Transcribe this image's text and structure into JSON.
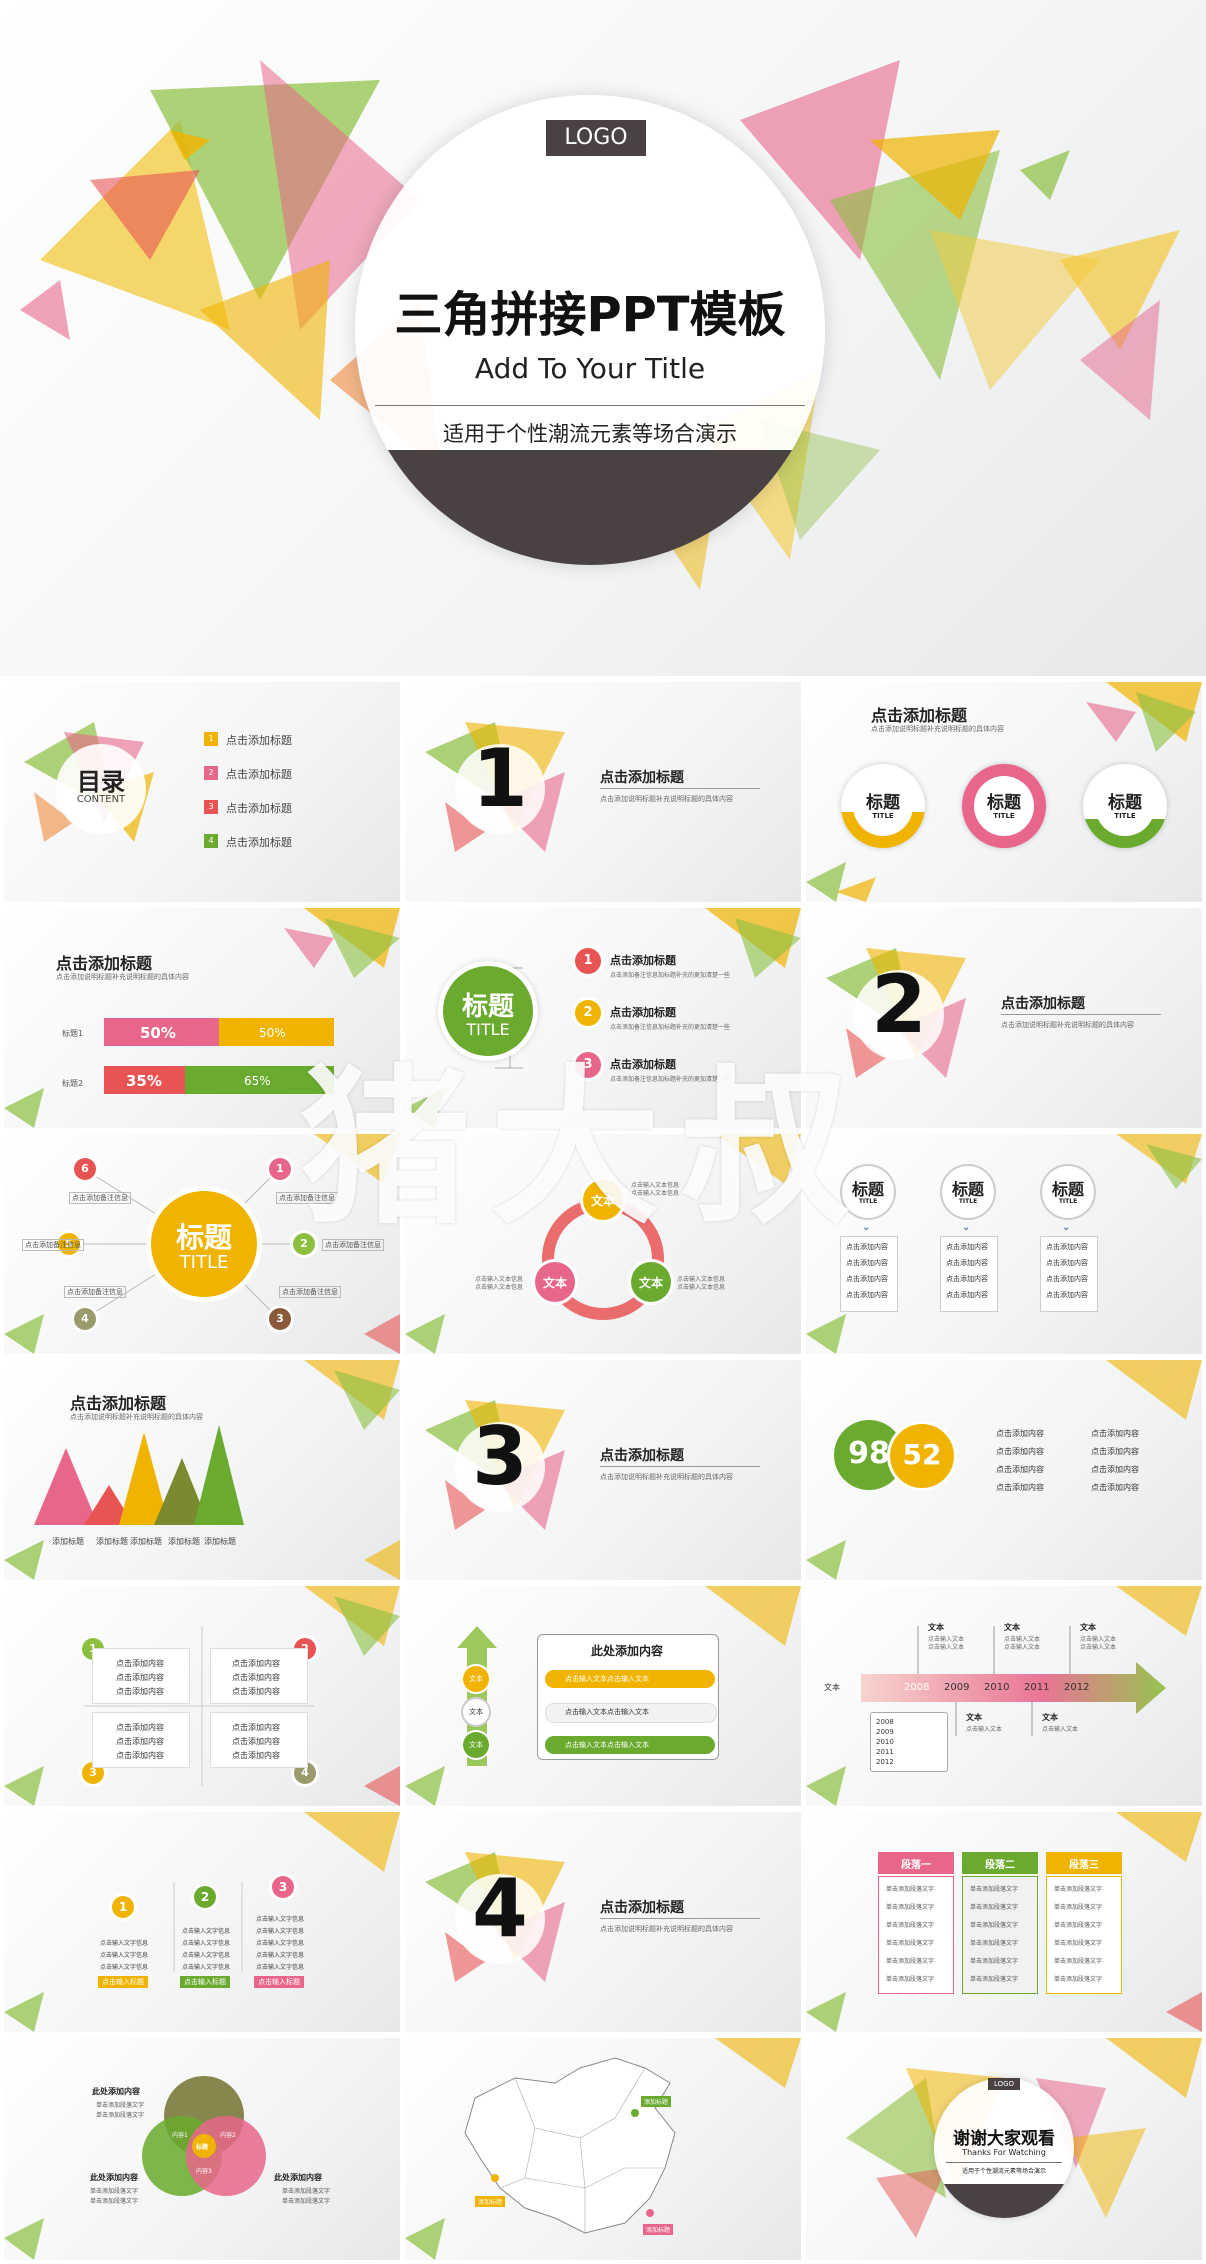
{
  "watermark": "猪大叔",
  "cover": {
    "logo": "LOGO",
    "title": "三角拼接PPT模板",
    "subtitle": "Add To Your Title",
    "tagline": "适用于个性潮流元素等场合演示"
  },
  "toc": {
    "title": "目录",
    "subtitle": "CONTENT",
    "items": [
      {
        "num": "1",
        "label": "点击添加标题",
        "color": "#f0b400"
      },
      {
        "num": "2",
        "label": "点击添加标题",
        "color": "#e8668a"
      },
      {
        "num": "3",
        "label": "点击添加标题",
        "color": "#e85454"
      },
      {
        "num": "4",
        "label": "点击添加标题",
        "color": "#6aaa2e"
      }
    ]
  },
  "section_title": "点击添加标题",
  "section_desc": "点击添加说明标题补充说明标题的具体内容",
  "sections": [
    "1",
    "2",
    "3",
    "4"
  ],
  "header_title": "点击添加标题",
  "header_desc": "点击添加说明标题补充说明标题的具体内容",
  "badges": {
    "label": "标题",
    "sub": "TITLE"
  },
  "bars": {
    "rows": [
      {
        "label": "标题1",
        "left": "50%",
        "right": "50%",
        "left_color": "#e8668a",
        "right_color": "#f0b400",
        "left_frac": 0.5
      },
      {
        "label": "标题2",
        "left": "35%",
        "right": "65%",
        "left_color": "#e85454",
        "right_color": "#6aaa2e",
        "left_frac": 0.35
      }
    ]
  },
  "center_title": {
    "label": "标题",
    "sub": "TITLE"
  },
  "list3": {
    "item": "点击添加标题",
    "desc": "点击添加备注信息加标题补充的更加清楚一些"
  },
  "spokes": {
    "labels": [
      "1",
      "2",
      "3",
      "4",
      "5",
      "6"
    ],
    "note": "点击添加备注信息"
  },
  "cycle": {
    "node": "文本",
    "note": "点击输入文本信息"
  },
  "cols": {
    "title": "标题",
    "sub": "TITLE",
    "item": "点击添加内容"
  },
  "mountains": {
    "labels": [
      "添加标题",
      "添加标题",
      "添加标题",
      "添加标题",
      "添加标题"
    ]
  },
  "stats": {
    "a": "98",
    "b": "52",
    "item": "点击添加内容"
  },
  "quad": {
    "nums": [
      "1",
      "2",
      "3",
      "4"
    ],
    "item": "点击添加内容"
  },
  "arrow": {
    "title": "此处添加内容",
    "node": "文本",
    "line": "点击输入文本点击输入文本"
  },
  "timeline": {
    "years": [
      "2008",
      "2009",
      "2010",
      "2011",
      "2012"
    ],
    "label": "文本",
    "note": "点击输入文本"
  },
  "steps": {
    "nums": [
      "1",
      "2",
      "3"
    ],
    "line": "点击输入文字信息",
    "button": "点击输入标题"
  },
  "table": {
    "heads": [
      "段落一",
      "段落二",
      "段落三"
    ],
    "cell": "单击添加段落文字"
  },
  "venn": {
    "title": "此处添加内容",
    "labels": [
      "内容1",
      "内容2",
      "内容3",
      "标题"
    ],
    "item": "单击添加段落文字"
  },
  "map": {
    "tag": "添加标题"
  },
  "thanks": {
    "logo": "LOGO",
    "title": "谢谢大家观看",
    "sub": "Thanks For Watching",
    "tagline": "适用于个性潮流元素等场合演示"
  }
}
